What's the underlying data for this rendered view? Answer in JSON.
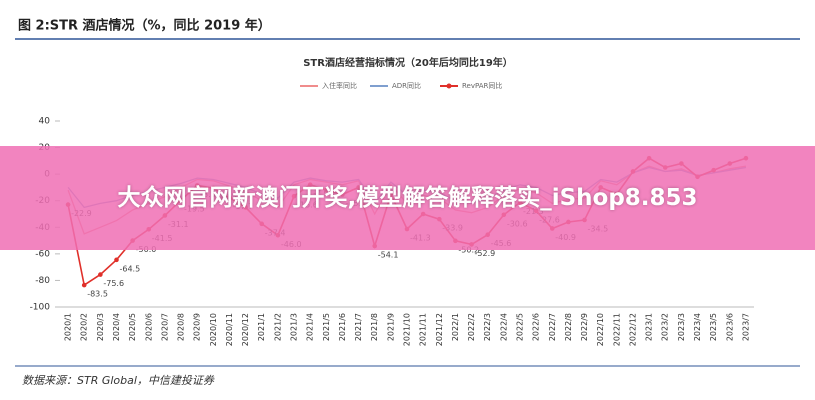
{
  "header": {
    "title": "图 2:STR 酒店情况（%，同比 2019 年）",
    "source": "数据来源：STR Global，中信建投证券"
  },
  "overlay": {
    "text": "大众网官网新澳门开奖,模型解答解释落实_iShop8.853"
  },
  "chart_data": {
    "type": "line",
    "title": "STR酒店经营指标情况（20年后均同比19年）",
    "categories": [
      "2020/1",
      "2020/2",
      "2020/3",
      "2020/4",
      "2020/5",
      "2020/6",
      "2020/7",
      "2020/8",
      "2020/9",
      "2020/10",
      "2020/11",
      "2020/12",
      "2021/1",
      "2021/2",
      "2021/3",
      "2021/4",
      "2021/5",
      "2021/6",
      "2021/7",
      "2021/8",
      "2021/9",
      "2021/10",
      "2021/11",
      "2021/12",
      "2022/1",
      "2022/2",
      "2022/3",
      "2022/4",
      "2022/5",
      "2022/6",
      "2022/7",
      "2022/8",
      "2022/9",
      "2022/10",
      "2022/11",
      "2022/12",
      "2023/1",
      "2023/2",
      "2023/3",
      "2023/4",
      "2023/5",
      "2023/6",
      "2023/7"
    ],
    "series": [
      {
        "name": "入住率同比",
        "color": "#f08c8c",
        "values": [
          -12,
          -45,
          -40,
          -35,
          -27,
          -22,
          -17,
          -10,
          -4,
          -5,
          -9,
          -13,
          -20,
          -25,
          -8,
          -4,
          -6,
          -8,
          -5,
          -30,
          -8,
          -22,
          -16,
          -18,
          -27,
          -29,
          -25,
          -16,
          -11,
          -14,
          -22,
          -19,
          -18,
          -5,
          -8,
          1,
          6,
          2,
          4,
          -1,
          1,
          4,
          6
        ]
      },
      {
        "name": "ADR同比",
        "color": "#7f9fcf",
        "values": [
          -10,
          -25,
          -22,
          -20,
          -16,
          -13,
          -10,
          -7,
          -3,
          -4,
          -7,
          -10,
          -15,
          -18,
          -6,
          -3,
          -5,
          -6,
          -4,
          -22,
          -6,
          -16,
          -12,
          -14,
          -20,
          -22,
          -18,
          -12,
          -8,
          -10,
          -16,
          -14,
          -13,
          -4,
          -6,
          1,
          5,
          2,
          3,
          -1,
          1,
          3,
          5
        ]
      },
      {
        "name": "RevPAR同比",
        "color": "#e0302a",
        "markers": true,
        "values": [
          -22.9,
          -83.5,
          -75.6,
          -64.5,
          -50.0,
          -41.5,
          -31.1,
          -19.5,
          -8.5,
          -10.5,
          -17.7,
          -25,
          -37.4,
          -46.0,
          -16.6,
          -7.9,
          -12,
          -15.3,
          -10,
          -54.1,
          -15,
          -41.3,
          -30,
          -33.9,
          -50.2,
          -52.9,
          -45.6,
          -30.6,
          -21.3,
          -27.6,
          -40.9,
          -36,
          -34.5,
          -10,
          -15,
          2,
          12,
          5,
          8,
          -2,
          3,
          8,
          12
        ],
        "value_labels": [
          "-22.9",
          "-83.5",
          "-75.6",
          "-64.5",
          "-50.0",
          "-41.5",
          "-31.1",
          "-19.5",
          "-8.5",
          "-10.5",
          "-17.7",
          null,
          "-37.4",
          "-46.0",
          "-16.6",
          "-7.9",
          null,
          "-15.3",
          null,
          "-54.1",
          null,
          "-41.3",
          null,
          "-33.9",
          "-50.2",
          "-52.9",
          "-45.6",
          "-30.6",
          "-21.3",
          "-27.6",
          "-40.9",
          null,
          "-34.5",
          null,
          null,
          null,
          null,
          null,
          null,
          null,
          null,
          null,
          null
        ]
      }
    ],
    "ylim": [
      -100,
      40
    ],
    "yticks": [
      -100,
      -80,
      -60,
      -40,
      -20,
      0,
      20,
      40
    ],
    "grid": false,
    "legend": "top"
  }
}
